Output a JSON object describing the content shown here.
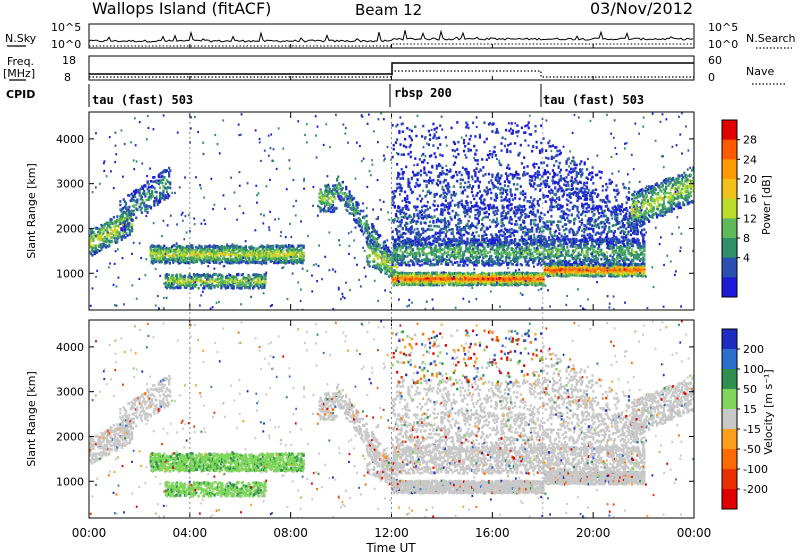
{
  "header": {
    "station": "Wallops Island (fitACF)",
    "beam": "Beam 12",
    "date": "03/Nov/2012"
  },
  "panels_top": {
    "nsky_label": "N.Sky",
    "nsky_ticks": [
      "10^5",
      "10^0"
    ],
    "nsearch_label": "N.Search",
    "nsearch_ticks": [
      "10^5",
      "10^0"
    ],
    "freq_label": "Freq.",
    "freq_unit": "[MHz]",
    "freq_ticks": [
      "18",
      "8"
    ],
    "nave_label": "Nave",
    "nave_ticks": [
      "60",
      "0"
    ],
    "cpid_label": "CPID",
    "cpid_segments": [
      {
        "label": "tau (fast) 503",
        "start_h": 0,
        "end_h": 12
      },
      {
        "label": "rbsp 200",
        "start_h": 12,
        "end_h": 18
      },
      {
        "label": "tau (fast) 503",
        "start_h": 18,
        "end_h": 24
      }
    ]
  },
  "chart_data": [
    {
      "type": "heatmap",
      "name": "power",
      "ylabel": "Slant Range [km]",
      "yticks": [
        "4000",
        "3000",
        "2000",
        "1000"
      ],
      "ylim": [
        180,
        4600
      ],
      "xlim": [
        0,
        24
      ],
      "colorbar_label": "Power [dB]",
      "colorbar_ticks": [
        "28",
        "24",
        "20",
        "16",
        "12",
        "8",
        "4"
      ],
      "colorbar_colors": [
        "#e00000",
        "#ff5a00",
        "#ff9a00",
        "#f2c21a",
        "#bedc2a",
        "#5fb85a",
        "#2f8f6a",
        "#2a4fb0",
        "#1c1cd8"
      ]
    },
    {
      "type": "heatmap",
      "name": "velocity",
      "ylabel": "Slant Range [km]",
      "yticks": [
        "4000",
        "3000",
        "2000",
        "1000"
      ],
      "ylim": [
        180,
        4600
      ],
      "xlim": [
        0,
        24
      ],
      "colorbar_label": "Velocity [m s⁻¹]",
      "colorbar_ticks": [
        "200",
        "100",
        "50",
        "15",
        "-15",
        "-50",
        "-100",
        "-200"
      ],
      "colorbar_colors": [
        "#1c2dbf",
        "#2c6fcf",
        "#2e8f4e",
        "#7fd65a",
        "#c8c8c8",
        "#ff9f1a",
        "#ff6a00",
        "#e83000",
        "#e00000"
      ]
    }
  ],
  "xaxis": {
    "label": "Time UT",
    "ticks": [
      "00:00",
      "04:00",
      "08:00",
      "12:00",
      "16:00",
      "20:00",
      "00:00"
    ]
  }
}
